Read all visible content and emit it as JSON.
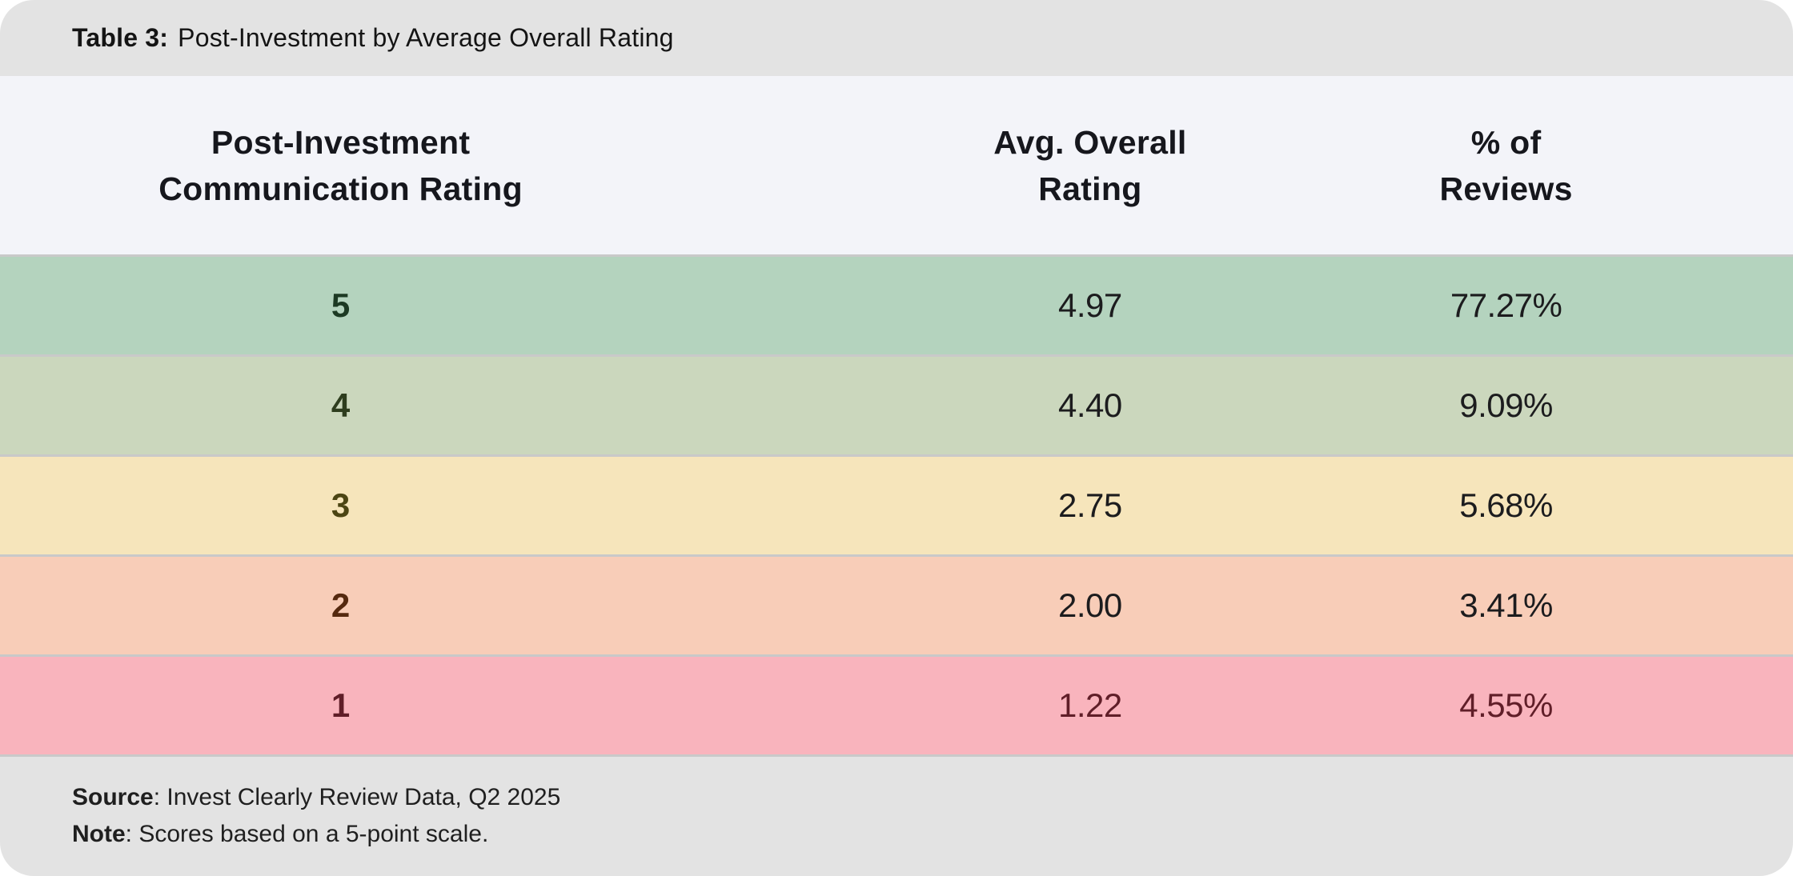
{
  "title": {
    "label": "Table 3:",
    "text": "Post-Investment by Average Overall Rating"
  },
  "header": {
    "col1_line1": "Post-Investment",
    "col1_line2": "Communication Rating",
    "col2_line1": "Avg. Overall",
    "col2_line2": "Rating",
    "col3_line1": "% of",
    "col3_line2": "Reviews"
  },
  "rows": [
    {
      "rating": "5",
      "avg": "4.97",
      "pct": "77.27%",
      "bg": "#b4d3be",
      "rating_color": "#1d3a24",
      "value_color": "#1c1c1e"
    },
    {
      "rating": "4",
      "avg": "4.40",
      "pct": "9.09%",
      "bg": "#cbd7bd",
      "rating_color": "#2e3d1e",
      "value_color": "#1c1c1e"
    },
    {
      "rating": "3",
      "avg": "2.75",
      "pct": "5.68%",
      "bg": "#f6e5bb",
      "rating_color": "#4c4513",
      "value_color": "#1c1c1e"
    },
    {
      "rating": "2",
      "avg": "2.00",
      "pct": "3.41%",
      "bg": "#f8cdb8",
      "rating_color": "#55290f",
      "value_color": "#1c1c1e"
    },
    {
      "rating": "1",
      "avg": "1.22",
      "pct": "4.55%",
      "bg": "#f9b4bd",
      "rating_color": "#601e28",
      "value_color": "#601e28"
    }
  ],
  "footer": {
    "source_label": "Source",
    "source_text": ": Invest Clearly Review Data, Q2 2025",
    "note_label": "Note",
    "note_text": ": Scores based on a 5-point scale."
  },
  "colors": {
    "title_bar_bg": "#e3e3e3",
    "header_bg": "#f3f4f9",
    "footer_bg": "#e3e3e3",
    "separator": "#c9c9c9",
    "header_text": "#16171d"
  },
  "chart_data": {
    "type": "table",
    "title": "Table 3: Post-Investment by Average Overall Rating",
    "columns": [
      "Post-Investment Communication Rating",
      "Avg. Overall Rating",
      "% of Reviews"
    ],
    "rows": [
      [
        "5",
        "4.97",
        "77.27%"
      ],
      [
        "4",
        "4.40",
        "9.09%"
      ],
      [
        "3",
        "2.75",
        "5.68%"
      ],
      [
        "2",
        "2.00",
        "3.41%"
      ],
      [
        "1",
        "1.22",
        "4.55%"
      ]
    ],
    "row_colors": [
      "#b4d3be",
      "#cbd7bd",
      "#f6e5bb",
      "#f8cdb8",
      "#f9b4bd"
    ],
    "source": "Invest Clearly Review Data, Q2 2025",
    "note": "Scores based on a 5-point scale."
  }
}
